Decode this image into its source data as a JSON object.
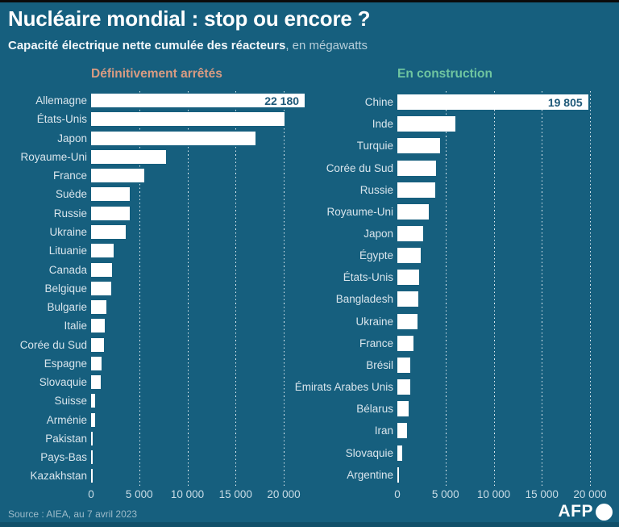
{
  "header": {
    "title": "Nucléaire mondial : stop ou encore ?",
    "subtitle_bold": "Capacité électrique nette cumulée des réacteurs",
    "subtitle_light": ", en mégawatts"
  },
  "footer": {
    "source": "Source : AIEA, au 7 avril 2023",
    "brand": "AFP"
  },
  "colors": {
    "background": "#165F7E",
    "top_bar": "#0B0B0B",
    "bottom_bar": "#11506A",
    "bar_fill": "#FFFFFF",
    "shutdown_header": "#D99B82",
    "construction_header": "#6FC5A0",
    "in_bar_value_text": "#1D5878",
    "label_text": "#D9E5EC",
    "axis_text": "#C9DCE6",
    "source_text": "#9DBBC9"
  },
  "chart_data": [
    {
      "type": "bar",
      "orientation": "horizontal",
      "title": "Définitivement arrêtés",
      "unit": "mégawatts",
      "xlim": [
        0,
        20000
      ],
      "x_ticks": [
        "0",
        "5 000",
        "10 000",
        "15 000",
        "20 000"
      ],
      "grid": "dotted-vertical",
      "categories": [
        "Allemagne",
        "États-Unis",
        "Japon",
        "Royaume-Uni",
        "France",
        "Suède",
        "Russie",
        "Ukraine",
        "Lituanie",
        "Canada",
        "Belgique",
        "Bulgarie",
        "Italie",
        "Corée du Sud",
        "Espagne",
        "Slovaquie",
        "Suisse",
        "Arménie",
        "Pakistan",
        "Pays-Bas",
        "Kazakhstan"
      ],
      "values": [
        22180,
        20100,
        17100,
        7800,
        5550,
        4050,
        4000,
        3600,
        2370,
        2150,
        2060,
        1630,
        1420,
        1300,
        1120,
        1000,
        405,
        395,
        100,
        60,
        50
      ],
      "value_labels": {
        "0": "22 180"
      }
    },
    {
      "type": "bar",
      "orientation": "horizontal",
      "title": "En construction",
      "unit": "mégawatts",
      "xlim": [
        0,
        20000
      ],
      "x_ticks": [
        "0",
        "5 000",
        "10 000",
        "15 000",
        "20 000"
      ],
      "grid": "dotted-vertical",
      "categories": [
        "Chine",
        "Inde",
        "Turquie",
        "Corée du Sud",
        "Russie",
        "Royaume-Uni",
        "Japon",
        "Égypte",
        "États-Unis",
        "Bangladesh",
        "Ukraine",
        "France",
        "Brésil",
        "Émirats Arabes Unis",
        "Bélarus",
        "Iran",
        "Slovaquie",
        "Argentine"
      ],
      "values": [
        19805,
        6050,
        4460,
        4020,
        3900,
        3300,
        2650,
        2400,
        2230,
        2160,
        2070,
        1650,
        1360,
        1345,
        1150,
        1000,
        470,
        25
      ],
      "value_labels": {
        "0": "19 805"
      }
    }
  ]
}
